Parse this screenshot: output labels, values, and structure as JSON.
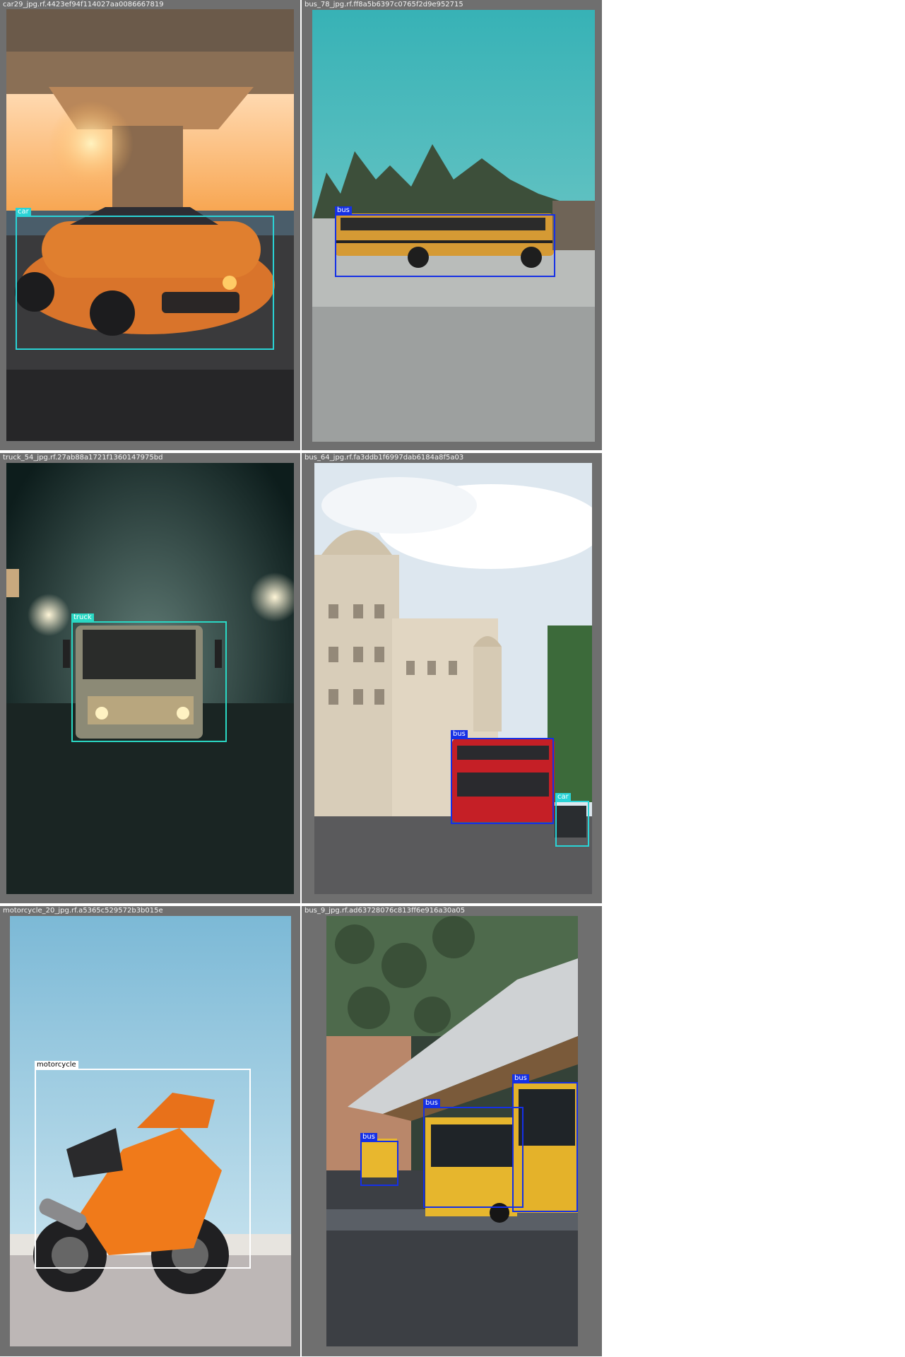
{
  "colors": {
    "car": "#2ad3d6",
    "bus": "#1530e6",
    "truck": "#2ad8c4",
    "motorcycle": "#ffffff",
    "panel": "#6f6f6f"
  },
  "cells": [
    {
      "filename": "car29_jpg.rf.4423ef94f114027aa0086667819",
      "scene": "orange-coupe-under-bridge",
      "detections": [
        {
          "label": "car"
        }
      ]
    },
    {
      "filename": "bus_78_jpg.rf.ff8a5b6397c0765f2d9e952715",
      "scene": "yellow-school-bus-teal-sky",
      "detections": [
        {
          "label": "bus"
        }
      ]
    },
    {
      "filename": "truck_54_jpg.rf.27ab88a1721f1360147975bd",
      "scene": "truck-in-fog-night",
      "detections": [
        {
          "label": "truck"
        }
      ]
    },
    {
      "filename": "bus_64_jpg.rf.fa3ddb1f6997dab6184a8f5a03",
      "scene": "red-double-decker-london",
      "detections": [
        {
          "label": "bus"
        },
        {
          "label": "car"
        }
      ]
    },
    {
      "filename": "motorcycle_20_jpg.rf.a5365c529572b3b015e",
      "scene": "orange-sport-motorcycle",
      "detections": [
        {
          "label": "motorcycle"
        }
      ]
    },
    {
      "filename": "bus_9_jpg.rf.ad63728076c813ff6e916a30a05",
      "scene": "yellow-buses-at-station",
      "detections": [
        {
          "label": "bus"
        },
        {
          "label": "bus"
        },
        {
          "label": "bus"
        }
      ]
    }
  ]
}
